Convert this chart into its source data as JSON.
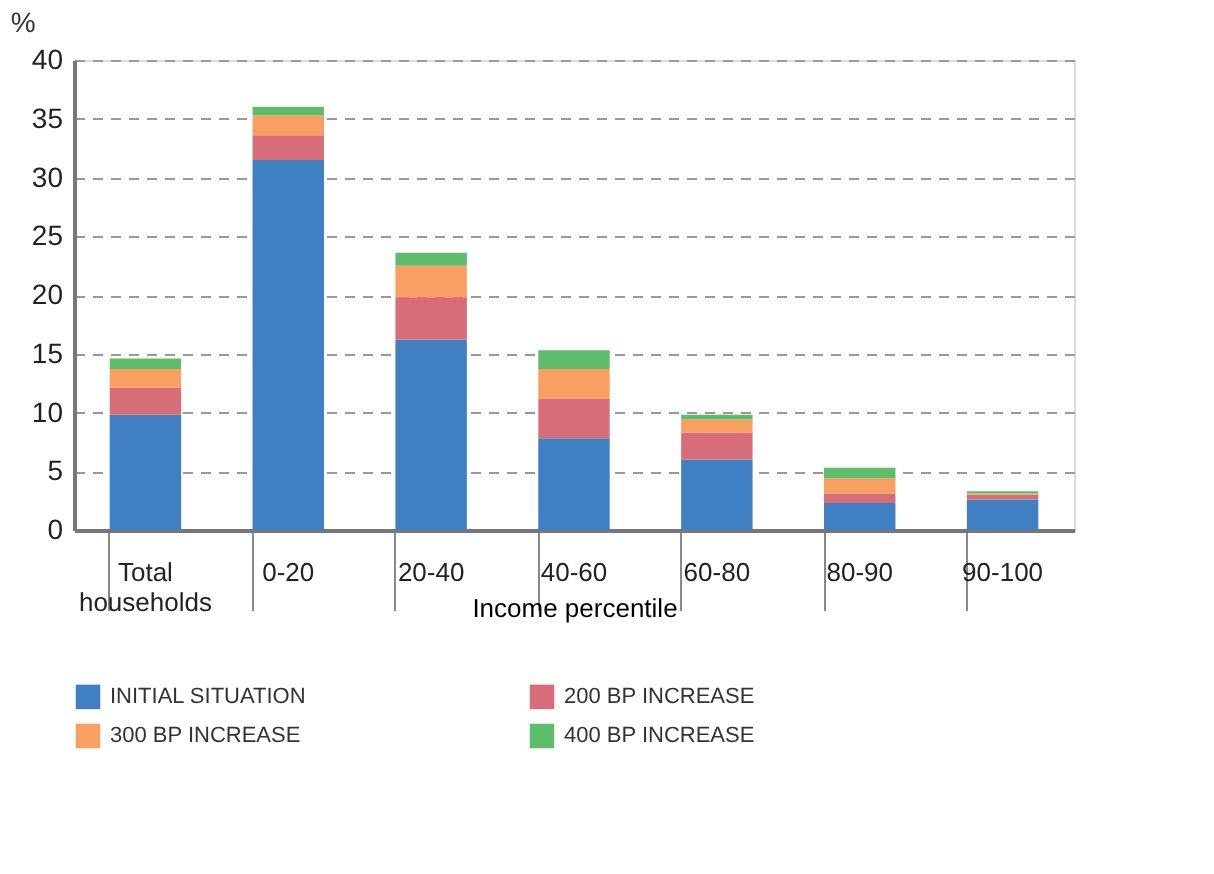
{
  "chart_data": {
    "type": "bar",
    "stacked": true,
    "ylabel": "%",
    "xlabel": "Income percentile",
    "categories": [
      "Total households",
      "0-20",
      "20-40",
      "40-60",
      "60-80",
      "80-90",
      "90-100"
    ],
    "series": [
      {
        "name": "INITIAL SITUATION",
        "color": "#3f7fc2",
        "values": [
          9.8,
          31.5,
          16.2,
          7.8,
          6.0,
          2.3,
          2.6
        ]
      },
      {
        "name": "200 BP INCREASE",
        "color": "#d86d7a",
        "values": [
          2.3,
          2.1,
          3.6,
          3.4,
          2.3,
          0.8,
          0.4
        ]
      },
      {
        "name": "300 BP INCREASE",
        "color": "#f99f62",
        "values": [
          1.6,
          1.7,
          2.7,
          2.5,
          1.1,
          1.3,
          0.1
        ]
      },
      {
        "name": "400 BP INCREASE",
        "color": "#5dbd6a",
        "values": [
          0.9,
          0.7,
          1.1,
          1.6,
          0.4,
          0.9,
          0.2
        ]
      }
    ],
    "ylim": [
      0,
      40
    ],
    "yticks": [
      0,
      5,
      10,
      15,
      20,
      25,
      30,
      35,
      40
    ],
    "grid": "y",
    "legend": "bottom"
  }
}
